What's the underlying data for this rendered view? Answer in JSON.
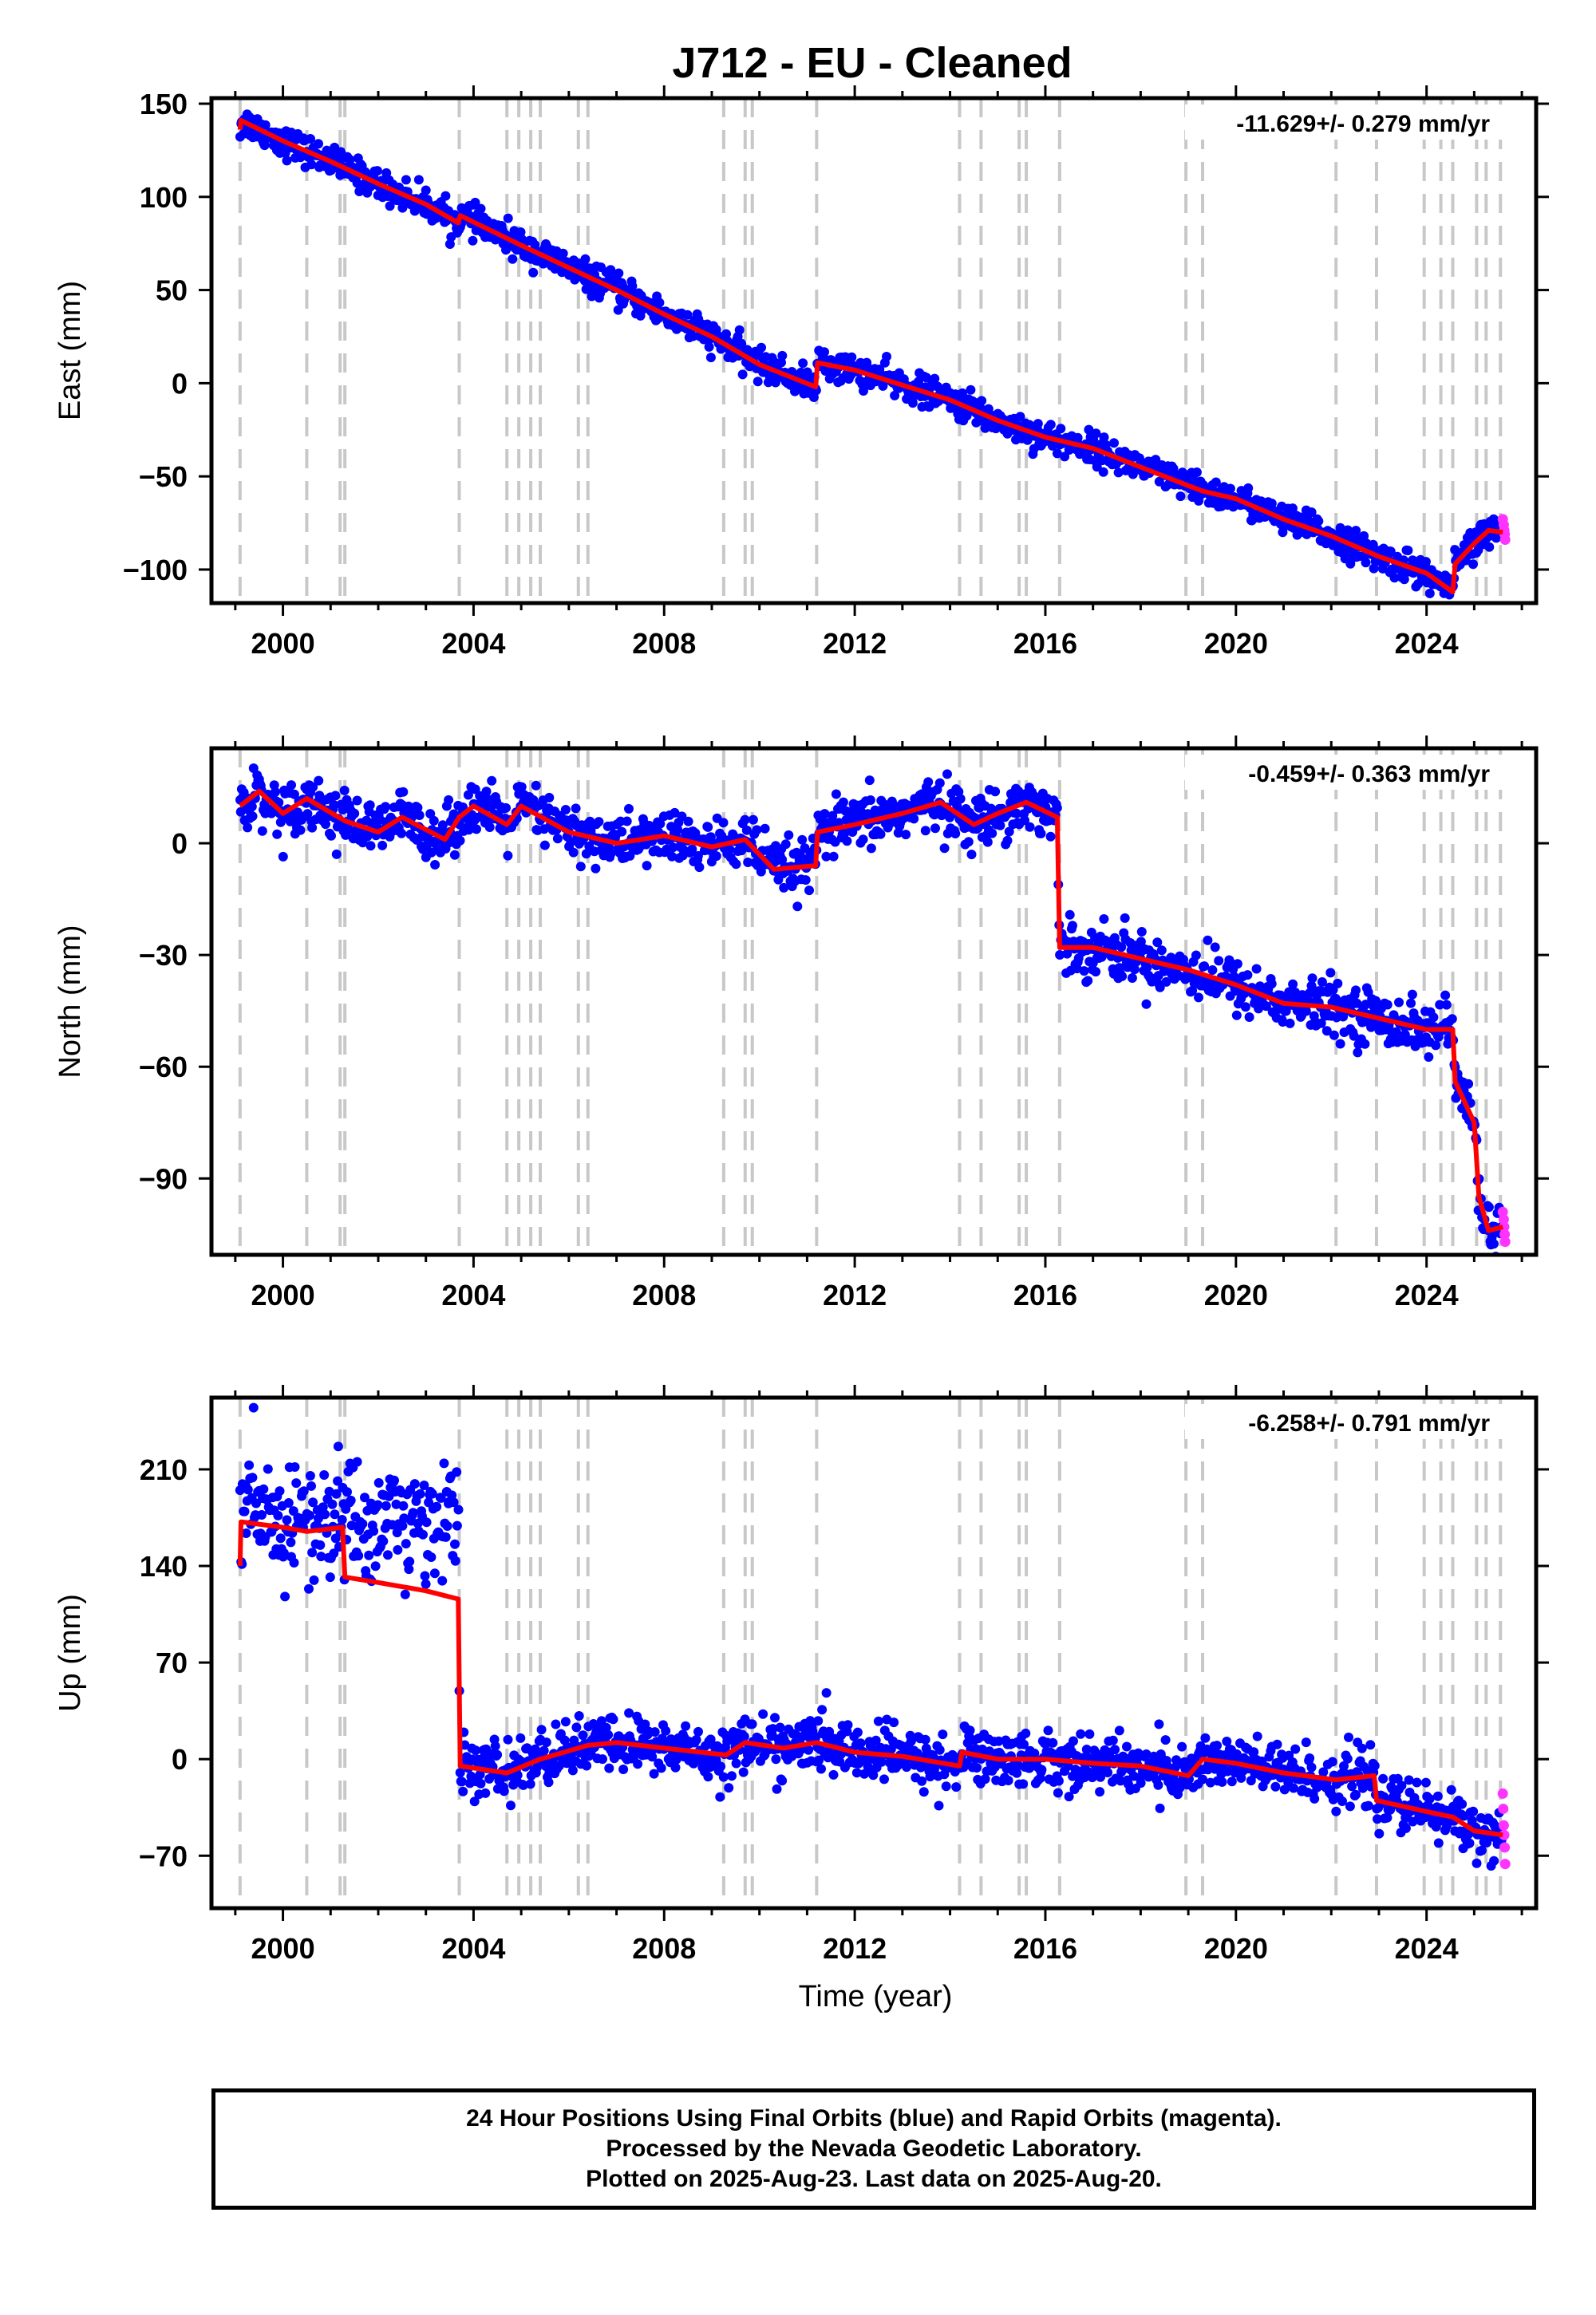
{
  "title": "J712  - EU - Cleaned",
  "footer": {
    "line1": "24 Hour Positions Using Final Orbits (blue) and Rapid Orbits (magenta).",
    "line2": "Processed by the Nevada Geodetic Laboratory.",
    "line3": "Plotted on 2025-Aug-23. Last data on 2025-Aug-20."
  },
  "colors": {
    "final": "#0000ff",
    "rapid": "#ff33ff",
    "model": "#ff0000",
    "event_lines": "#c8c8c8"
  },
  "chart_data": [
    {
      "type": "scatter",
      "panel": "east",
      "ylabel": "East (mm)",
      "rate": "-11.629+/- 0.279 mm/yr",
      "xlim": [
        1998.5,
        2026.3
      ],
      "xticks": [
        2000,
        2004,
        2008,
        2012,
        2016,
        2020,
        2024
      ],
      "ylim": [
        -118,
        153
      ],
      "yticks": [
        150,
        100,
        50,
        0,
        -50,
        -100
      ],
      "event_lines": [
        1999.1,
        2000.5,
        2001.2,
        2001.3,
        2003.7,
        2004.7,
        2004.95,
        2005.2,
        2005.4,
        2006.2,
        2006.4,
        2009.25,
        2009.7,
        2009.85,
        2011.2,
        2014.2,
        2014.65,
        2015.45,
        2015.6,
        2016.3,
        2018.95,
        2019.3,
        2022.1,
        2022.95,
        2023.95,
        2024.3,
        2024.55,
        2025.05,
        2025.25,
        2025.55
      ],
      "model": [
        {
          "x": 1999.1,
          "y": 136
        },
        {
          "x": 1999.12,
          "y": 141
        },
        {
          "x": 2000.0,
          "y": 130
        },
        {
          "x": 2001.0,
          "y": 119
        },
        {
          "x": 2002.0,
          "y": 107
        },
        {
          "x": 2003.0,
          "y": 96
        },
        {
          "x": 2003.68,
          "y": 86
        },
        {
          "x": 2003.72,
          "y": 90
        },
        {
          "x": 2005.0,
          "y": 74
        },
        {
          "x": 2006.0,
          "y": 62
        },
        {
          "x": 2007.0,
          "y": 50
        },
        {
          "x": 2008.0,
          "y": 37
        },
        {
          "x": 2009.0,
          "y": 25
        },
        {
          "x": 2010.0,
          "y": 10
        },
        {
          "x": 2011.18,
          "y": -2
        },
        {
          "x": 2011.22,
          "y": 11
        },
        {
          "x": 2012.0,
          "y": 7
        },
        {
          "x": 2013.0,
          "y": -1
        },
        {
          "x": 2014.0,
          "y": -9
        },
        {
          "x": 2015.0,
          "y": -20
        },
        {
          "x": 2016.0,
          "y": -29
        },
        {
          "x": 2017.0,
          "y": -35
        },
        {
          "x": 2018.0,
          "y": -45
        },
        {
          "x": 2019.0,
          "y": -55
        },
        {
          "x": 2019.32,
          "y": -58
        },
        {
          "x": 2020.0,
          "y": -62
        },
        {
          "x": 2021.0,
          "y": -73
        },
        {
          "x": 2022.0,
          "y": -82
        },
        {
          "x": 2023.0,
          "y": -93
        },
        {
          "x": 2024.0,
          "y": -102
        },
        {
          "x": 2024.55,
          "y": -112
        },
        {
          "x": 2024.6,
          "y": -97
        },
        {
          "x": 2025.0,
          "y": -86
        },
        {
          "x": 2025.3,
          "y": -79
        },
        {
          "x": 2025.6,
          "y": -80
        }
      ],
      "rapid": [
        {
          "x": 2025.6,
          "y": -73
        },
        {
          "x": 2025.62,
          "y": -76
        },
        {
          "x": 2025.63,
          "y": -79
        },
        {
          "x": 2025.64,
          "y": -81
        },
        {
          "x": 2025.65,
          "y": -84
        }
      ],
      "scatter_spread_mm": 4
    },
    {
      "type": "scatter",
      "panel": "north",
      "ylabel": "North (mm)",
      "rate": "-0.459+/- 0.363 mm/yr",
      "xlim": [
        1998.5,
        2026.3
      ],
      "xticks": [
        2000,
        2004,
        2008,
        2012,
        2016,
        2020,
        2024
      ],
      "ylim": [
        -110.5,
        25.5
      ],
      "yticks": [
        0,
        -30,
        -60,
        -90
      ],
      "event_lines": [
        1999.1,
        2000.5,
        2001.2,
        2001.3,
        2003.7,
        2004.7,
        2004.95,
        2005.2,
        2005.4,
        2006.2,
        2006.4,
        2009.25,
        2009.7,
        2009.85,
        2011.2,
        2014.2,
        2014.65,
        2015.45,
        2015.6,
        2016.3,
        2018.95,
        2019.3,
        2022.1,
        2022.95,
        2023.95,
        2024.3,
        2024.55,
        2025.05,
        2025.25,
        2025.55
      ],
      "model": [
        {
          "x": 1999.1,
          "y": 10
        },
        {
          "x": 1999.5,
          "y": 14
        },
        {
          "x": 2000.0,
          "y": 8
        },
        {
          "x": 2000.5,
          "y": 12
        },
        {
          "x": 2001.3,
          "y": 6
        },
        {
          "x": 2002.0,
          "y": 3
        },
        {
          "x": 2002.5,
          "y": 7
        },
        {
          "x": 2003.4,
          "y": 1
        },
        {
          "x": 2003.7,
          "y": 7
        },
        {
          "x": 2004.0,
          "y": 10
        },
        {
          "x": 2004.7,
          "y": 5
        },
        {
          "x": 2005.0,
          "y": 10
        },
        {
          "x": 2006.0,
          "y": 3
        },
        {
          "x": 2007.0,
          "y": 0
        },
        {
          "x": 2008.0,
          "y": 2
        },
        {
          "x": 2009.0,
          "y": -1
        },
        {
          "x": 2009.7,
          "y": 1
        },
        {
          "x": 2010.3,
          "y": -7
        },
        {
          "x": 2011.18,
          "y": -6
        },
        {
          "x": 2011.22,
          "y": 3
        },
        {
          "x": 2012.0,
          "y": 5
        },
        {
          "x": 2013.0,
          "y": 8
        },
        {
          "x": 2013.8,
          "y": 11
        },
        {
          "x": 2014.5,
          "y": 5
        },
        {
          "x": 2015.0,
          "y": 8
        },
        {
          "x": 2015.6,
          "y": 11
        },
        {
          "x": 2016.25,
          "y": 7
        },
        {
          "x": 2016.3,
          "y": -28
        },
        {
          "x": 2017.0,
          "y": -28
        },
        {
          "x": 2018.0,
          "y": -31
        },
        {
          "x": 2019.0,
          "y": -34
        },
        {
          "x": 2020.0,
          "y": -38
        },
        {
          "x": 2021.0,
          "y": -43
        },
        {
          "x": 2022.0,
          "y": -44
        },
        {
          "x": 2023.0,
          "y": -47
        },
        {
          "x": 2024.0,
          "y": -50
        },
        {
          "x": 2024.55,
          "y": -50
        },
        {
          "x": 2024.6,
          "y": -64
        },
        {
          "x": 2025.0,
          "y": -75
        },
        {
          "x": 2025.1,
          "y": -95
        },
        {
          "x": 2025.3,
          "y": -104
        },
        {
          "x": 2025.6,
          "y": -103
        }
      ],
      "rapid": [
        {
          "x": 2025.6,
          "y": -99
        },
        {
          "x": 2025.62,
          "y": -101
        },
        {
          "x": 2025.63,
          "y": -103
        },
        {
          "x": 2025.64,
          "y": -105
        },
        {
          "x": 2025.65,
          "y": -107
        }
      ],
      "scatter_spread_mm": 3.5
    },
    {
      "type": "scatter",
      "panel": "up",
      "ylabel": "Up (mm)",
      "rate": "-6.258+/- 0.791 mm/yr",
      "xlabel": "Time (year)",
      "xlim": [
        1998.5,
        2026.3
      ],
      "xticks": [
        2000,
        2004,
        2008,
        2012,
        2016,
        2020,
        2024
      ],
      "ylim": [
        -108,
        262
      ],
      "yticks": [
        210,
        140,
        70,
        0,
        -70
      ],
      "event_lines": [
        1999.1,
        2000.5,
        2001.2,
        2001.3,
        2003.7,
        2004.7,
        2004.95,
        2005.2,
        2005.4,
        2006.2,
        2006.4,
        2009.25,
        2009.7,
        2009.85,
        2011.2,
        2014.2,
        2014.65,
        2015.45,
        2015.6,
        2016.3,
        2018.95,
        2019.3,
        2022.1,
        2022.95,
        2023.95,
        2024.3,
        2024.55,
        2025.05,
        2025.25,
        2025.55
      ],
      "model": [
        {
          "x": 1999.1,
          "y": 140
        },
        {
          "x": 1999.12,
          "y": 172
        },
        {
          "x": 2000.0,
          "y": 168
        },
        {
          "x": 2000.5,
          "y": 165
        },
        {
          "x": 2001.25,
          "y": 168
        },
        {
          "x": 2001.3,
          "y": 132
        },
        {
          "x": 2002.0,
          "y": 128
        },
        {
          "x": 2003.0,
          "y": 122
        },
        {
          "x": 2003.68,
          "y": 116
        },
        {
          "x": 2003.72,
          "y": -5
        },
        {
          "x": 2004.7,
          "y": -10
        },
        {
          "x": 2005.4,
          "y": 0
        },
        {
          "x": 2006.4,
          "y": 10
        },
        {
          "x": 2007.0,
          "y": 12
        },
        {
          "x": 2008.0,
          "y": 8
        },
        {
          "x": 2009.3,
          "y": 3
        },
        {
          "x": 2009.7,
          "y": 12
        },
        {
          "x": 2010.5,
          "y": 8
        },
        {
          "x": 2011.2,
          "y": 12
        },
        {
          "x": 2012.0,
          "y": 5
        },
        {
          "x": 2013.0,
          "y": 2
        },
        {
          "x": 2014.2,
          "y": -5
        },
        {
          "x": 2014.25,
          "y": 5
        },
        {
          "x": 2015.0,
          "y": 0
        },
        {
          "x": 2016.0,
          "y": 0
        },
        {
          "x": 2017.0,
          "y": -3
        },
        {
          "x": 2018.0,
          "y": -5
        },
        {
          "x": 2019.0,
          "y": -12
        },
        {
          "x": 2019.3,
          "y": 0
        },
        {
          "x": 2020.0,
          "y": -3
        },
        {
          "x": 2021.0,
          "y": -10
        },
        {
          "x": 2022.1,
          "y": -15
        },
        {
          "x": 2022.9,
          "y": -12
        },
        {
          "x": 2022.95,
          "y": -30
        },
        {
          "x": 2024.0,
          "y": -38
        },
        {
          "x": 2024.55,
          "y": -42
        },
        {
          "x": 2025.0,
          "y": -52
        },
        {
          "x": 2025.6,
          "y": -55
        }
      ],
      "rapid": [
        {
          "x": 2025.6,
          "y": -25
        },
        {
          "x": 2025.61,
          "y": -36
        },
        {
          "x": 2025.62,
          "y": -48
        },
        {
          "x": 2025.63,
          "y": -55
        },
        {
          "x": 2025.64,
          "y": -64
        },
        {
          "x": 2025.65,
          "y": -76
        }
      ],
      "scatter_spread_mm": [
        22,
        10
      ]
    }
  ]
}
